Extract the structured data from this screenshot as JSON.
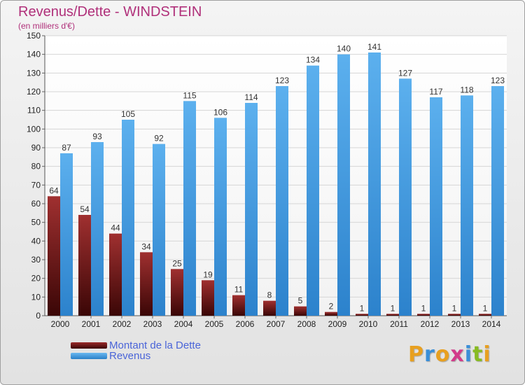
{
  "header": {
    "title": "Revenus/Dette - WINDSTEIN",
    "subtitle": "(en milliers d'€)"
  },
  "chart_data": {
    "type": "bar",
    "categories": [
      "2000",
      "2001",
      "2002",
      "2003",
      "2004",
      "2005",
      "2006",
      "2007",
      "2008",
      "2009",
      "2010",
      "2011",
      "2012",
      "2013",
      "2014"
    ],
    "series": [
      {
        "name": "Montant de la Dette",
        "values": [
          64,
          54,
          44,
          34,
          25,
          19,
          11,
          8,
          5,
          2,
          1,
          1,
          1,
          1,
          1
        ],
        "color": "#7a1a1a"
      },
      {
        "name": "Revenus",
        "values": [
          87,
          93,
          105,
          92,
          115,
          106,
          114,
          123,
          134,
          140,
          141,
          127,
          117,
          118,
          123
        ],
        "color": "#3f9ae0"
      }
    ],
    "ylim": [
      0,
      150
    ],
    "yticks": [
      0,
      10,
      20,
      30,
      40,
      50,
      60,
      70,
      80,
      90,
      100,
      110,
      120,
      130,
      140,
      150
    ],
    "grid": true,
    "legend_position": "bottom-left"
  },
  "legend": {
    "items": [
      {
        "label": "Montant de la Dette",
        "color": "#6e0f0f"
      },
      {
        "label": "Revenus",
        "color": "#3f9ae0"
      }
    ]
  },
  "logo": {
    "letters": [
      "P",
      "r",
      "o",
      "x",
      "i",
      "t",
      "i"
    ],
    "colors": [
      "#e8a020",
      "#3a8fd8",
      "#e8a020",
      "#d23b8a",
      "#3a8fd8",
      "#88bb22",
      "#e8a020"
    ]
  }
}
